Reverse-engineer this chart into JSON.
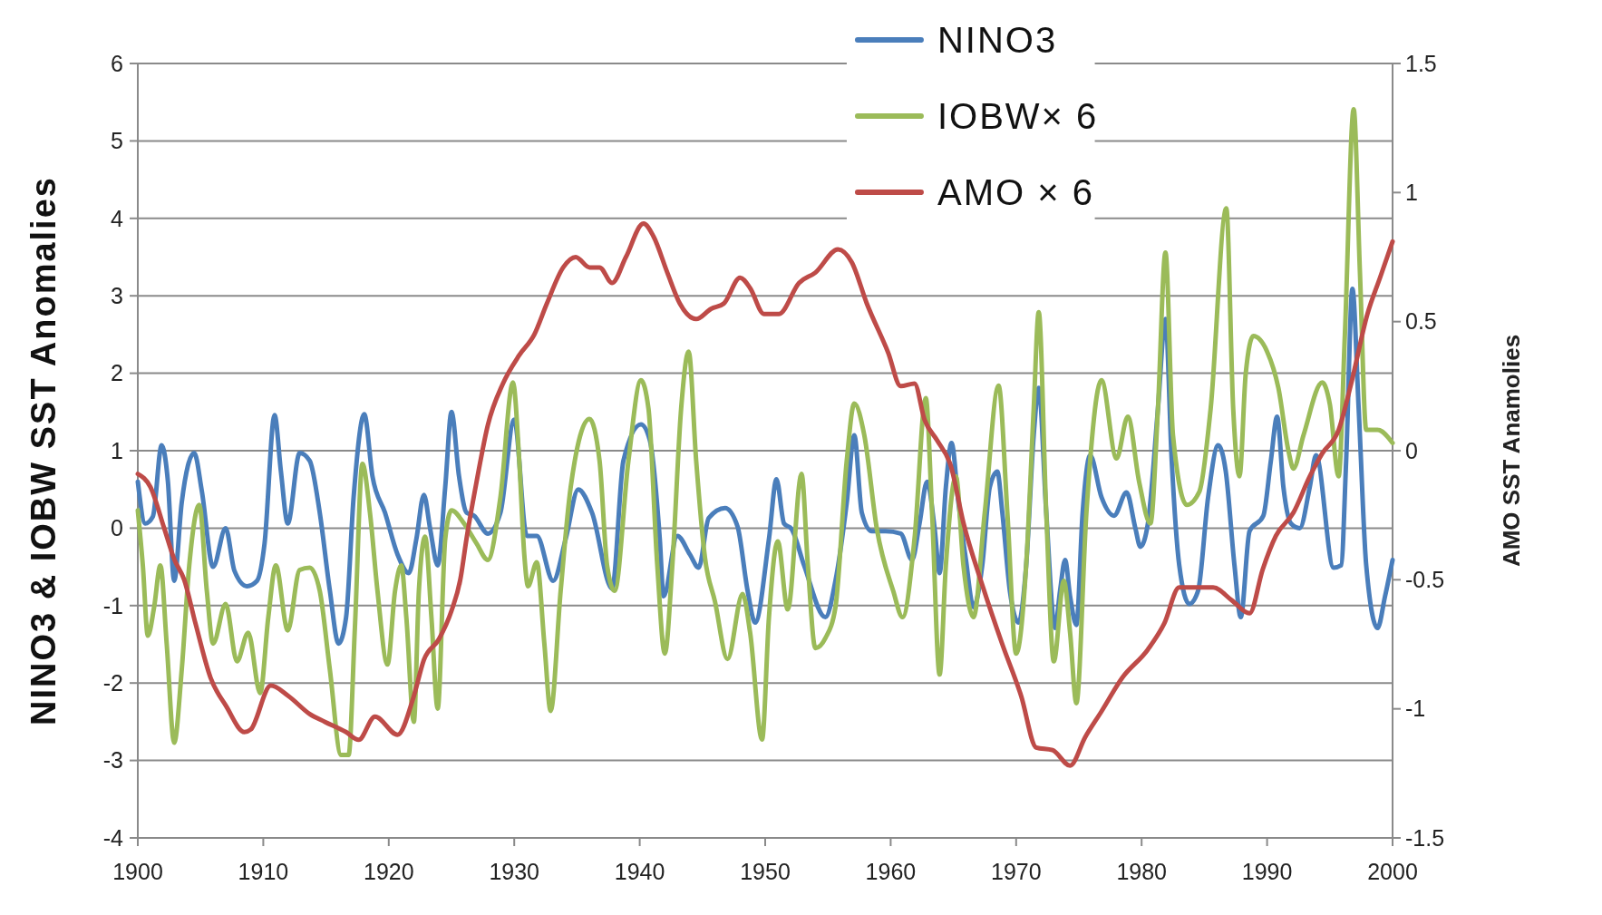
{
  "chart_data": {
    "type": "line",
    "ylabel": "NINO3 & IOBW SST Anomalies",
    "y2label": "AMO SST Anamolies",
    "xlim": [
      1900,
      2000
    ],
    "xticks": [
      1900,
      1910,
      1920,
      1930,
      1940,
      1950,
      1960,
      1970,
      1980,
      1990,
      2000
    ],
    "ylim": [
      -4,
      6
    ],
    "yticks": [
      -4,
      -3,
      -2,
      -1,
      0,
      1,
      2,
      3,
      4,
      5,
      6
    ],
    "y2lim": [
      -1.5,
      1.5
    ],
    "y2ticks": [
      -1.5,
      -1,
      -0.5,
      0,
      0.5,
      1,
      1.5
    ],
    "grid": "y",
    "legend": "top",
    "series": [
      {
        "name": "NINO3",
        "color": "#4a7ebb",
        "x": [
          1900,
          1900.6,
          1901.2,
          1901.9,
          1902.4,
          1902.9,
          1903.5,
          1904.5,
          1905.1,
          1906,
          1907,
          1907.7,
          1908.7,
          1909.5,
          1910.1,
          1910.9,
          1911.4,
          1911.95,
          1912.9,
          1913.7,
          1914.5,
          1915.3,
          1916,
          1916.6,
          1917.2,
          1918.05,
          1918.7,
          1919.7,
          1920.7,
          1921.6,
          1922.2,
          1922.8,
          1923.3,
          1923.9,
          1924.5,
          1925,
          1925.6,
          1926.2,
          1926.8,
          1927.9,
          1928.9,
          1930,
          1931,
          1931.8,
          1933.1,
          1934.1,
          1935.1,
          1936.2,
          1937.8,
          1938.7,
          1940.1,
          1940.8,
          1941.6,
          1941.9,
          1943,
          1944,
          1944.7,
          1945.5,
          1946.8,
          1947.8,
          1948.6,
          1949.2,
          1950.3,
          1950.9,
          1951.5,
          1952.1,
          1953.1,
          1954.8,
          1955.6,
          1956.5,
          1957.1,
          1957.7,
          1958.5,
          1959.6,
          1960.8,
          1961.7,
          1962.3,
          1962.9,
          1963.5,
          1963.9,
          1964.4,
          1964.85,
          1965.4,
          1966,
          1966.6,
          1967.3,
          1967.9,
          1968.5,
          1968.9,
          1969.5,
          1970.2,
          1970.8,
          1971.4,
          1971.8,
          1972.4,
          1973.1,
          1973.5,
          1973.9,
          1974.3,
          1974.8,
          1975.3,
          1975.9,
          1976.8,
          1977.8,
          1978.8,
          1979.5,
          1979.9,
          1980.5,
          1981.3,
          1981.9,
          1982.4,
          1983,
          1983.8,
          1984.5,
          1985.3,
          1986.1,
          1986.7,
          1987.4,
          1987.9,
          1988.6,
          1989.7,
          1990.3,
          1990.8,
          1991.3,
          1991.9,
          1992.6,
          1993.4,
          1993.9,
          1995.3,
          1995.9,
          1996.3,
          1996.8,
          1997.3,
          1997.9,
          1998.8,
          1999.4,
          2000
        ],
        "values": [
          0.6,
          0.06,
          0.15,
          1.07,
          0.6,
          -0.68,
          0.33,
          0.97,
          0.48,
          -0.5,
          0,
          -0.55,
          -0.75,
          -0.68,
          -0.2,
          1.46,
          0.74,
          0.06,
          0.97,
          0.87,
          0.2,
          -0.8,
          -1.49,
          -1.15,
          0.4,
          1.47,
          0.67,
          0.2,
          -0.34,
          -0.58,
          -0.14,
          0.43,
          -0.01,
          -0.48,
          0.53,
          1.5,
          0.67,
          0.2,
          0.16,
          -0.07,
          0.2,
          1.4,
          -0.1,
          -0.1,
          -0.68,
          -0.14,
          0.5,
          0.2,
          -0.78,
          0.87,
          1.34,
          1.14,
          -0.14,
          -0.88,
          -0.1,
          -0.34,
          -0.51,
          0.13,
          0.26,
          0.02,
          -0.81,
          -1.22,
          -0.14,
          0.63,
          0.06,
          -0.01,
          -0.48,
          -1.15,
          -0.68,
          0.33,
          1.2,
          0.2,
          -0.04,
          -0.04,
          -0.07,
          -0.41,
          0.06,
          0.6,
          0,
          -0.58,
          0.53,
          1.1,
          0.33,
          -0.41,
          -1.02,
          -0.48,
          0.53,
          0.73,
          0.2,
          -0.81,
          -1.22,
          -0.48,
          1.2,
          1.81,
          0.2,
          -1.29,
          -0.81,
          -0.41,
          -0.88,
          -1.25,
          0.2,
          0.94,
          0.4,
          0.16,
          0.46,
          0,
          -0.24,
          0.06,
          1.54,
          2.7,
          0.87,
          -0.48,
          -0.98,
          -0.81,
          0.4,
          1.07,
          0.74,
          -0.48,
          -1.15,
          -0.04,
          0.16,
          0.87,
          1.44,
          0.53,
          0.06,
          0,
          0.53,
          0.94,
          -0.51,
          -0.48,
          0.87,
          3.09,
          1.54,
          -0.48,
          -1.29,
          -0.88,
          -0.41
        ]
      },
      {
        "name": "IOBW× 6",
        "color": "#9bbb59",
        "x": [
          1900,
          1900.4,
          1900.8,
          1901.3,
          1901.8,
          1902.3,
          1902.9,
          1903.5,
          1904.1,
          1904.9,
          1905.5,
          1906,
          1907,
          1907.9,
          1908.8,
          1909.75,
          1910.4,
          1911,
          1911.95,
          1912.9,
          1913.7,
          1914.5,
          1915.3,
          1916.2,
          1916.8,
          1917.3,
          1917.9,
          1918.5,
          1919.1,
          1919.9,
          1920.5,
          1921,
          1921.4,
          1922,
          1922.4,
          1922.9,
          1923.4,
          1923.9,
          1924.5,
          1925,
          1926,
          1927,
          1927.9,
          1928.9,
          1929.9,
          1930.4,
          1930.8,
          1931.1,
          1931.8,
          1932.4,
          1932.9,
          1933.7,
          1934.5,
          1936,
          1936.8,
          1937.4,
          1938,
          1939.1,
          1940.1,
          1940.7,
          1941.4,
          1942,
          1942.6,
          1943.3,
          1943.9,
          1944.5,
          1945.2,
          1946,
          1947,
          1948.2,
          1948.8,
          1949.75,
          1950.3,
          1951,
          1951.8,
          1952.9,
          1953.4,
          1954,
          1954.8,
          1955.6,
          1956.5,
          1957.1,
          1957.9,
          1958.9,
          1960.2,
          1960.95,
          1961.9,
          1962.8,
          1963.3,
          1963.9,
          1964.4,
          1965.2,
          1965.8,
          1966.6,
          1967.5,
          1968.6,
          1969.3,
          1970,
          1970.8,
          1971.4,
          1971.8,
          1972.4,
          1973,
          1973.8,
          1974.3,
          1974.8,
          1975.6,
          1976.8,
          1978,
          1978.9,
          1979.8,
          1980.7,
          1981.3,
          1981.9,
          1982.5,
          1983.6,
          1984.6,
          1985.5,
          1986.75,
          1987.3,
          1987.8,
          1988.3,
          1988.9,
          1990,
          1990.9,
          1991.7,
          1992.1,
          1992.9,
          1994.4,
          1995,
          1995.7,
          1996.2,
          1996.9,
          1997.4,
          1997.9,
          1998.8,
          2000
        ],
        "values": [
          0.23,
          -0.48,
          -1.39,
          -1.02,
          -0.48,
          -1.49,
          -2.77,
          -1.83,
          -0.48,
          0.3,
          -0.81,
          -1.49,
          -0.98,
          -1.72,
          -1.35,
          -2.13,
          -1.15,
          -0.48,
          -1.32,
          -0.54,
          -0.51,
          -0.81,
          -1.82,
          -2.93,
          -2.93,
          -1.29,
          0.83,
          0.2,
          -0.81,
          -1.76,
          -0.81,
          -0.48,
          -1.15,
          -2.5,
          -0.81,
          -0.11,
          -1.15,
          -2.33,
          -0.14,
          0.23,
          0.06,
          -0.2,
          -0.41,
          0.4,
          1.88,
          0.87,
          -0.34,
          -0.75,
          -0.44,
          -1.49,
          -2.36,
          -0.81,
          0.53,
          1.41,
          0.87,
          -0.48,
          -0.81,
          0.87,
          1.91,
          1.54,
          -0.48,
          -1.62,
          -0.48,
          1.54,
          2.28,
          0.87,
          -0.38,
          -0.95,
          -1.69,
          -0.85,
          -1.35,
          -2.73,
          -1.15,
          -0.17,
          -1.05,
          0.7,
          -0.48,
          -1.55,
          -1.42,
          -1.02,
          0.87,
          1.61,
          1.2,
          -0.01,
          -0.81,
          -1.15,
          -0.14,
          1.68,
          0.2,
          -1.89,
          -0.48,
          0.67,
          -0.48,
          -1.15,
          0.2,
          1.84,
          0.2,
          -1.62,
          -0.48,
          1.54,
          2.79,
          0.2,
          -1.72,
          -0.68,
          -1.35,
          -2.26,
          0.2,
          1.91,
          0.9,
          1.44,
          0.6,
          0.06,
          1.54,
          3.56,
          1.2,
          0.3,
          0.47,
          1.54,
          4.13,
          1.54,
          0.67,
          2,
          2.48,
          2.28,
          1.81,
          1,
          0.77,
          1.2,
          1.88,
          1.6,
          0.67,
          2.5,
          5.41,
          3.3,
          1.27,
          1.27,
          1.1
        ]
      },
      {
        "name": "AMO × 6",
        "color": "#be4b48",
        "axis": "y2",
        "x": [
          1900,
          1901,
          1902.1,
          1902.9,
          1903.7,
          1904.6,
          1905.8,
          1907.05,
          1908.5,
          1909,
          1910.6,
          1912,
          1913.7,
          1914.9,
          1916.6,
          1917.6,
          1918.9,
          1920.7,
          1922,
          1922.8,
          1924,
          1925,
          1925.7,
          1926.2,
          1927,
          1927.9,
          1929.1,
          1930.4,
          1931.6,
          1932.6,
          1933.9,
          1934.9,
          1936,
          1936.8,
          1937.8,
          1938.9,
          1940.3,
          1941.1,
          1942.2,
          1943.2,
          1944.5,
          1945.7,
          1946.7,
          1948,
          1948.8,
          1949.9,
          1951.1,
          1952.7,
          1954,
          1955.8,
          1956.9,
          1958.1,
          1959.8,
          1960.8,
          1961.9,
          1962.7,
          1963.7,
          1964.8,
          1965.8,
          1967.3,
          1968.9,
          1970.4,
          1971.6,
          1972.9,
          1974.3,
          1975.5,
          1976.8,
          1978.45,
          1980.5,
          1981.8,
          1983,
          1984.3,
          1985.7,
          1987.2,
          1988.6,
          1989.65,
          1990.7,
          1992.1,
          1993.4,
          1994.4,
          1995.7,
          1996.7,
          1998,
          1999,
          2000
        ],
        "values": [
          -0.09,
          -0.14,
          -0.3,
          -0.42,
          -0.5,
          -0.67,
          -0.88,
          -0.99,
          -1.09,
          -1.08,
          -0.91,
          -0.95,
          -1.02,
          -1.05,
          -1.09,
          -1.12,
          -1.03,
          -1.1,
          -0.95,
          -0.81,
          -0.73,
          -0.62,
          -0.5,
          -0.34,
          -0.12,
          0.1,
          0.26,
          0.37,
          0.45,
          0.57,
          0.71,
          0.75,
          0.71,
          0.71,
          0.65,
          0.75,
          0.88,
          0.83,
          0.69,
          0.57,
          0.51,
          0.55,
          0.57,
          0.67,
          0.63,
          0.53,
          0.53,
          0.65,
          0.69,
          0.78,
          0.73,
          0.57,
          0.38,
          0.25,
          0.26,
          0.12,
          0.04,
          -0.06,
          -0.28,
          -0.52,
          -0.75,
          -0.95,
          -1.15,
          -1.16,
          -1.22,
          -1.11,
          -1.01,
          -0.88,
          -0.77,
          -0.67,
          -0.53,
          -0.53,
          -0.53,
          -0.58,
          -0.63,
          -0.46,
          -0.33,
          -0.24,
          -0.1,
          -0.01,
          0.08,
          0.26,
          0.53,
          0.67,
          0.81
        ]
      }
    ]
  }
}
